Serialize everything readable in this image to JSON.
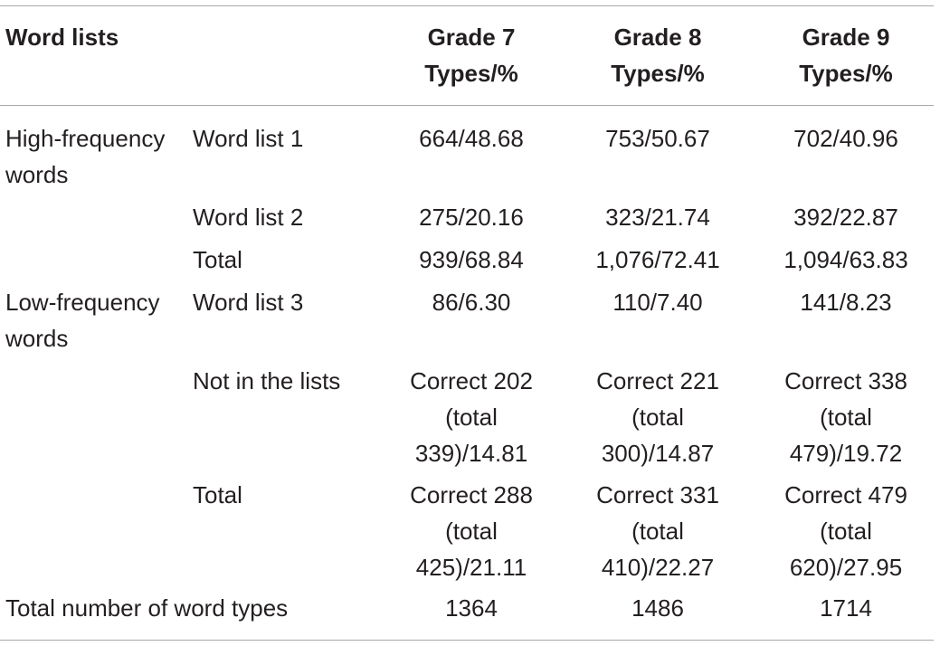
{
  "table": {
    "headers": {
      "word_lists": "Word lists",
      "grade7": [
        "Grade 7",
        "Types/%"
      ],
      "grade8": [
        "Grade 8",
        "Types/%"
      ],
      "grade9": [
        "Grade 9",
        "Types/%"
      ]
    },
    "rows": [
      {
        "category": [
          "High-frequency",
          "words"
        ],
        "sub": "Word list 1",
        "g7": [
          "664/48.68"
        ],
        "g8": [
          "753/50.67"
        ],
        "g9": [
          "702/40.96"
        ]
      },
      {
        "category": [],
        "sub": "Word list 2",
        "g7": [
          "275/20.16"
        ],
        "g8": [
          "323/21.74"
        ],
        "g9": [
          "392/22.87"
        ]
      },
      {
        "category": [],
        "sub": "Total",
        "g7": [
          "939/68.84"
        ],
        "g8": [
          "1,076/72.41"
        ],
        "g9": [
          "1,094/63.83"
        ]
      },
      {
        "category": [
          "Low-frequency",
          "words"
        ],
        "sub": "Word list 3",
        "g7": [
          "86/6.30"
        ],
        "g8": [
          "110/7.40"
        ],
        "g9": [
          "141/8.23"
        ]
      },
      {
        "category": [],
        "sub": "Not in the lists",
        "g7": [
          "Correct 202",
          "(total",
          "339)/14.81"
        ],
        "g8": [
          "Correct 221",
          "(total",
          "300)/14.87"
        ],
        "g9": [
          "Correct 338",
          "(total",
          "479)/19.72"
        ]
      },
      {
        "category": [],
        "sub": "Total",
        "g7": [
          "Correct 288",
          "(total",
          "425)/21.11"
        ],
        "g8": [
          "Correct 331",
          "(total",
          "410)/22.27"
        ],
        "g9": [
          "Correct 479",
          "(total",
          "620)/27.95"
        ]
      }
    ],
    "footer": {
      "label": "Total number of word types",
      "g7": "1364",
      "g8": "1486",
      "g9": "1714"
    }
  }
}
